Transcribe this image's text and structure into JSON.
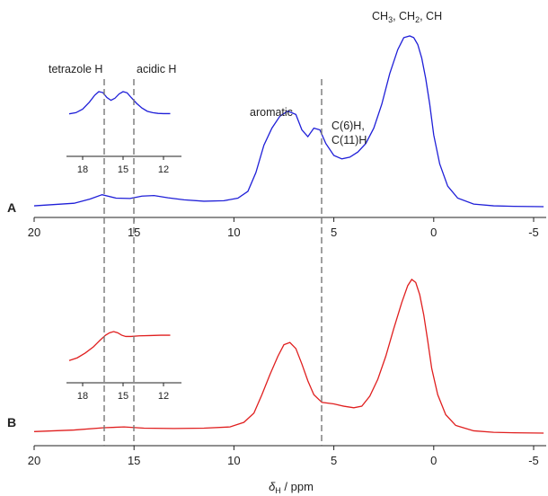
{
  "colors": {
    "spectrum_A": "#1f1fd8",
    "spectrum_B": "#e01f1f",
    "axis": "#222222",
    "guide": "#777777"
  },
  "chart_data": [
    {
      "type": "line",
      "panel": "A",
      "panel_label": "A",
      "xlabel": "",
      "x_reversed": true,
      "xlim": [
        20,
        -5.5
      ],
      "x_ticks": [
        20,
        15,
        10,
        5,
        0,
        -5
      ],
      "x_tick_labels": [
        "20",
        "15",
        "10",
        "5",
        "0",
        "-5"
      ],
      "ylim": [
        0,
        1
      ],
      "series": [
        {
          "name": "",
          "color": "#1f1fd8",
          "x": [
            20.0,
            18.0,
            17.2,
            16.6,
            15.9,
            15.2,
            14.6,
            14.0,
            13.3,
            12.5,
            11.5,
            10.5,
            9.8,
            9.3,
            8.9,
            8.5,
            8.1,
            7.7,
            7.3,
            6.9,
            6.6,
            6.3,
            6.0,
            5.7,
            5.4,
            5.0,
            4.6,
            4.2,
            3.8,
            3.4,
            3.0,
            2.6,
            2.2,
            1.8,
            1.5,
            1.2,
            1.0,
            0.8,
            0.6,
            0.4,
            0.2,
            0.0,
            -0.3,
            -0.7,
            -1.2,
            -2.0,
            -3.0,
            -4.0,
            -5.5
          ],
          "y": [
            0.005,
            0.02,
            0.045,
            0.07,
            0.05,
            0.048,
            0.062,
            0.065,
            0.052,
            0.04,
            0.032,
            0.035,
            0.05,
            0.09,
            0.2,
            0.36,
            0.46,
            0.53,
            0.56,
            0.54,
            0.45,
            0.41,
            0.46,
            0.45,
            0.37,
            0.3,
            0.28,
            0.29,
            0.32,
            0.37,
            0.46,
            0.6,
            0.78,
            0.92,
            0.99,
            1.0,
            0.99,
            0.95,
            0.87,
            0.75,
            0.6,
            0.42,
            0.25,
            0.12,
            0.05,
            0.015,
            0.005,
            0.002,
            0.0
          ]
        }
      ],
      "annotations": {
        "aromatic": "aromatic",
        "c6h": "C(6)H,",
        "c11h": "C(11)H",
        "tetrazole_h": "tetrazole H",
        "acidic_h": "acidic H",
        "ch_prefix": "CH",
        "ch3_sub": "3",
        "ch_sep1": ", CH",
        "ch2_sub": "2",
        "ch_sep2": ", CH"
      },
      "inset": {
        "xlim": [
          19,
          11.5
        ],
        "x_ticks": [
          18,
          15,
          12
        ],
        "x_tick_labels": [
          "18",
          "15",
          "12"
        ],
        "series": [
          {
            "name": "",
            "color": "#1f1fd8",
            "x": [
              19.0,
              18.5,
              18.0,
              17.5,
              17.1,
              16.8,
              16.5,
              16.2,
              15.9,
              15.6,
              15.3,
              15.0,
              14.7,
              14.4,
              14.0,
              13.6,
              13.2,
              12.8,
              12.4,
              12.0,
              11.5
            ],
            "y": [
              0.05,
              0.1,
              0.25,
              0.55,
              0.85,
              1.0,
              0.96,
              0.75,
              0.63,
              0.72,
              0.9,
              1.0,
              0.95,
              0.75,
              0.5,
              0.3,
              0.16,
              0.1,
              0.07,
              0.06,
              0.06
            ]
          }
        ]
      }
    },
    {
      "type": "line",
      "panel": "B",
      "panel_label": "B",
      "xlabel_main": "δ",
      "xlabel_sub": "H",
      "xlabel_unit": " / ppm",
      "x_reversed": true,
      "xlim": [
        20,
        -5.5
      ],
      "x_ticks": [
        20,
        15,
        10,
        5,
        0,
        -5
      ],
      "x_tick_labels": [
        "20",
        "15",
        "10",
        "5",
        "0",
        "-5"
      ],
      "ylim": [
        0,
        1
      ],
      "series": [
        {
          "name": "",
          "color": "#e01f1f",
          "x": [
            20.0,
            18.0,
            16.5,
            15.5,
            14.5,
            13.0,
            11.5,
            10.2,
            9.5,
            9.0,
            8.6,
            8.2,
            7.8,
            7.5,
            7.2,
            6.9,
            6.6,
            6.3,
            6.0,
            5.6,
            5.0,
            4.5,
            4.0,
            3.6,
            3.2,
            2.8,
            2.4,
            2.0,
            1.6,
            1.3,
            1.1,
            0.9,
            0.7,
            0.5,
            0.3,
            0.1,
            -0.2,
            -0.6,
            -1.1,
            -2.0,
            -3.0,
            -4.0,
            -5.5
          ],
          "y": [
            0.01,
            0.02,
            0.035,
            0.04,
            0.032,
            0.03,
            0.032,
            0.04,
            0.07,
            0.13,
            0.25,
            0.38,
            0.5,
            0.575,
            0.59,
            0.55,
            0.45,
            0.34,
            0.25,
            0.2,
            0.19,
            0.175,
            0.165,
            0.175,
            0.24,
            0.35,
            0.5,
            0.68,
            0.85,
            0.96,
            1.0,
            0.98,
            0.9,
            0.77,
            0.6,
            0.42,
            0.25,
            0.12,
            0.05,
            0.015,
            0.005,
            0.002,
            0.0
          ]
        }
      ],
      "inset": {
        "xlim": [
          19,
          11.5
        ],
        "x_ticks": [
          18,
          15,
          12
        ],
        "x_tick_labels": [
          "18",
          "15",
          "12"
        ],
        "series": [
          {
            "name": "",
            "color": "#e01f1f",
            "x": [
              19.0,
              18.4,
              17.8,
              17.2,
              16.7,
              16.3,
              16.0,
              15.7,
              15.4,
              15.1,
              14.8,
              14.4,
              13.8,
              13.0,
              12.2,
              11.5
            ],
            "y": [
              0.05,
              0.14,
              0.3,
              0.5,
              0.72,
              0.88,
              0.96,
              1.0,
              0.96,
              0.88,
              0.84,
              0.84,
              0.86,
              0.87,
              0.88,
              0.88
            ]
          }
        ]
      }
    }
  ]
}
